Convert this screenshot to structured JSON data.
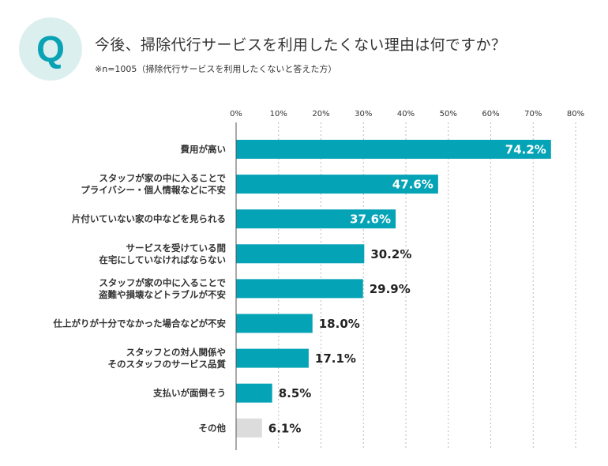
{
  "header": {
    "q_letter": "Q",
    "title": "今後、掃除代行サービスを利用したくない理由は何ですか？",
    "subtitle": "※n=1005（掃除代行サービスを利用したくないと答えた方）"
  },
  "chart_data": {
    "type": "bar",
    "orientation": "horizontal",
    "title": "今後、掃除代行サービスを利用したくない理由は何ですか？",
    "categories": [
      [
        "費用が高い"
      ],
      [
        "スタッフが家の中に入ることで",
        "プライバシー・個人情報などに不安"
      ],
      [
        "片付いていない家の中などを見られる"
      ],
      [
        "サービスを受けている間",
        "在宅にしていなければならない"
      ],
      [
        "スタッフが家の中に入ることで",
        "盗難や損壊などトラブルが不安"
      ],
      [
        "仕上がりが十分でなかった場合などが不安"
      ],
      [
        "スタッフとの対人関係や",
        "そのスタッフのサービス品質"
      ],
      [
        "支払いが面倒そう"
      ],
      [
        "その他"
      ]
    ],
    "values": [
      74.2,
      47.6,
      37.6,
      30.2,
      29.9,
      18.0,
      17.1,
      8.5,
      6.1
    ],
    "value_labels": [
      "74.2%",
      "47.6%",
      "37.6%",
      "30.2%",
      "29.9%",
      "18.0%",
      "17.1%",
      "8.5%",
      "6.1%"
    ],
    "xlim": [
      0,
      80
    ],
    "xticks": [
      0,
      10,
      20,
      30,
      40,
      50,
      60,
      70,
      80
    ],
    "xtick_labels": [
      "0%",
      "10%",
      "20%",
      "30%",
      "40%",
      "50%",
      "60%",
      "70%",
      "80%"
    ],
    "grid": true,
    "colors": {
      "main": "#05a3b6",
      "other": "#dcdcdc",
      "circle": "#dcefef"
    }
  }
}
